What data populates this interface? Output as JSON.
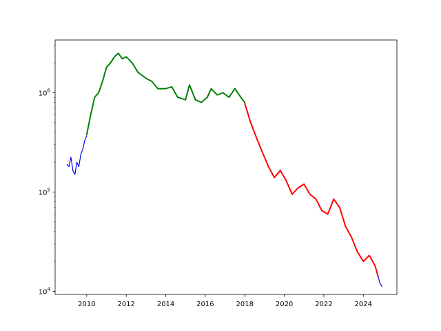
{
  "chart_data": {
    "type": "line",
    "title": "",
    "xlabel": "",
    "ylabel": "",
    "xlim": [
      2008.4,
      2025.7
    ],
    "ylim": [
      9300,
      3400000
    ],
    "yscale": "log",
    "grid": false,
    "legend": "none",
    "x_ticks": [
      {
        "value": 2010,
        "label": "2010"
      },
      {
        "value": 2012,
        "label": "2012"
      },
      {
        "value": 2014,
        "label": "2014"
      },
      {
        "value": 2016,
        "label": "2016"
      },
      {
        "value": 2018,
        "label": "2018"
      },
      {
        "value": 2020,
        "label": "2020"
      },
      {
        "value": 2022,
        "label": "2022"
      },
      {
        "value": 2024,
        "label": "2024"
      }
    ],
    "y_ticks": [
      {
        "value": 10000,
        "base": "10",
        "exp": "4"
      },
      {
        "value": 100000,
        "base": "10",
        "exp": "5"
      },
      {
        "value": 1000000,
        "base": "10",
        "exp": "6"
      }
    ],
    "series": [
      {
        "color": "#0000ff",
        "linewidth": 1.2,
        "x": [
          2009.0,
          2009.1,
          2009.2,
          2009.3,
          2009.4,
          2009.5,
          2009.6,
          2009.7,
          2009.8,
          2009.9,
          2010.0
        ],
        "y": [
          190000,
          180000,
          225000,
          165000,
          150000,
          200000,
          180000,
          240000,
          270000,
          330000,
          370000
        ]
      },
      {
        "color": "#008000",
        "linewidth": 2.0,
        "x": [
          2010.0,
          2010.2,
          2010.4,
          2010.6,
          2010.8,
          2011.0,
          2011.2,
          2011.4,
          2011.6,
          2011.8,
          2012.0,
          2012.3,
          2012.6,
          2013.0,
          2013.3,
          2013.6,
          2014.0,
          2014.3,
          2014.6,
          2015.0,
          2015.2,
          2015.5,
          2015.8,
          2016.1,
          2016.3,
          2016.6,
          2016.9,
          2017.2,
          2017.5,
          2017.8,
          2018.0
        ],
        "y": [
          380000,
          600000,
          900000,
          1000000,
          1300000,
          1800000,
          2000000,
          2300000,
          2500000,
          2200000,
          2300000,
          2000000,
          1600000,
          1400000,
          1300000,
          1100000,
          1100000,
          1150000,
          900000,
          850000,
          1200000,
          850000,
          800000,
          900000,
          1100000,
          950000,
          1000000,
          900000,
          1100000,
          900000,
          800000
        ]
      },
      {
        "color": "#ff0000",
        "linewidth": 2.0,
        "x": [
          2018.0,
          2018.3,
          2018.6,
          2018.9,
          2019.2,
          2019.5,
          2019.8,
          2020.1,
          2020.4,
          2020.7,
          2021.0,
          2021.3,
          2021.6,
          2021.9,
          2022.2,
          2022.5,
          2022.8,
          2023.1,
          2023.4,
          2023.7,
          2024.0,
          2024.3,
          2024.6,
          2024.75
        ],
        "y": [
          780000,
          500000,
          350000,
          250000,
          180000,
          140000,
          165000,
          130000,
          95000,
          110000,
          120000,
          95000,
          85000,
          65000,
          60000,
          85000,
          70000,
          45000,
          35000,
          25000,
          20000,
          23000,
          18000,
          14000
        ]
      },
      {
        "color": "#0000ff",
        "linewidth": 1.2,
        "x": [
          2024.75,
          2024.85,
          2024.95
        ],
        "y": [
          14000,
          12000,
          11200
        ]
      }
    ]
  }
}
